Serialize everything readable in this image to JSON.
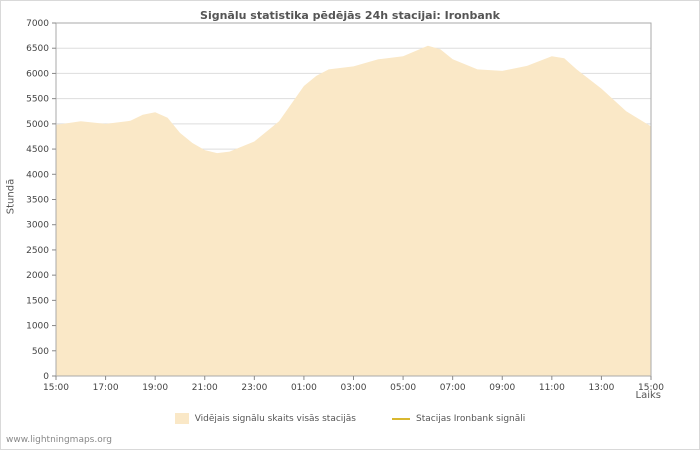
{
  "page": {
    "watermark": "www.lightningmaps.org"
  },
  "chart_data": {
    "type": "area",
    "title": "Signālu statistika pēdējās 24h stacijai: Ironbank",
    "xlabel": "Laiks",
    "ylabel": "Stundā",
    "ylim": [
      0,
      7000
    ],
    "ytick_step": 500,
    "xlim_hours": [
      0,
      24
    ],
    "xtick_hours": [
      0,
      2,
      4,
      6,
      8,
      10,
      12,
      14,
      16,
      18,
      20,
      22,
      24
    ],
    "xtick_labels": [
      "15:00",
      "17:00",
      "19:00",
      "21:00",
      "23:00",
      "01:00",
      "03:00",
      "05:00",
      "07:00",
      "09:00",
      "11:00",
      "13:00",
      "15:00"
    ],
    "grid": true,
    "legend_position": "bottom",
    "colors": {
      "area_fill": "#FAE8C7",
      "line": "#D9B830",
      "grid": "#DDDDDD",
      "axis": "#AAAAAA",
      "tick": "#888888",
      "text": "#555555"
    },
    "x": [
      0,
      1,
      2,
      3,
      3.5,
      4,
      4.5,
      5,
      5.5,
      6,
      6.5,
      7,
      8,
      9,
      10,
      10.5,
      11,
      12,
      13,
      14,
      15,
      15.5,
      16,
      17,
      18,
      19,
      20,
      20.5,
      21,
      22,
      23,
      24
    ],
    "series": [
      {
        "name": "Vidējais signālu skaits visās stacijās",
        "type": "area",
        "color": "#FAE8C7",
        "values": [
          4980,
          5050,
          5000,
          5060,
          5180,
          5230,
          5120,
          4820,
          4620,
          4480,
          4420,
          4450,
          4650,
          5050,
          5750,
          5950,
          6080,
          6140,
          6280,
          6340,
          6550,
          6480,
          6280,
          6080,
          6050,
          6150,
          6340,
          6300,
          6080,
          5700,
          5250,
          4950
        ]
      },
      {
        "name": "Stacijas Ironbank signāli",
        "type": "line",
        "color": "#D9B830",
        "values": []
      }
    ]
  }
}
